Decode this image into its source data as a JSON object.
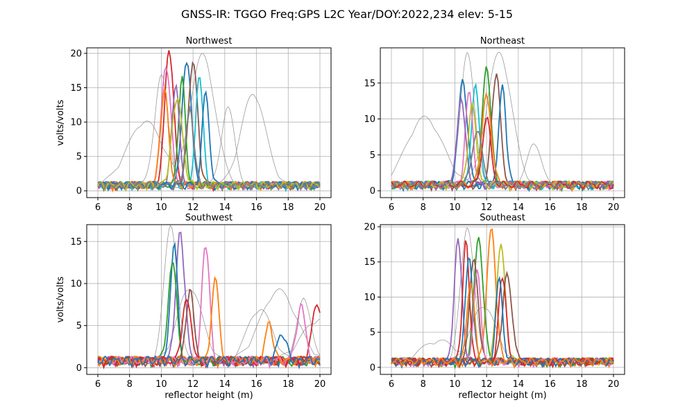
{
  "figure": {
    "suptitle": "GNSS-IR: TGGO Freq:GPS L2C Year/DOY:2022,234 elev: 5-15"
  },
  "chart_data": [
    {
      "type": "line",
      "title": "Northwest",
      "xlabel": "",
      "ylabel": "volts/volts",
      "xlim": [
        5.3,
        20.7
      ],
      "ylim": [
        -0.99,
        20.8
      ],
      "xticks": [
        6,
        8,
        10,
        12,
        14,
        16,
        18,
        20
      ],
      "yticks": [
        0,
        5,
        10,
        15,
        20
      ],
      "grid": true,
      "series": [
        {
          "color": "#d62728",
          "peak_x": 10.5,
          "peak_y": 19.8
        },
        {
          "color": "#1f77b4",
          "peak_x": 11.6,
          "peak_y": 18.5
        },
        {
          "color": "#8c564b",
          "peak_x": 12.0,
          "peak_y": 18.0
        },
        {
          "color": "#e377c2",
          "peak_x": 10.3,
          "peak_y": 17.5
        },
        {
          "color": "#17becf",
          "peak_x": 12.4,
          "peak_y": 16.2
        },
        {
          "color": "#2ca02c",
          "peak_x": 11.3,
          "peak_y": 15.6
        },
        {
          "color": "#9467bd",
          "peak_x": 10.9,
          "peak_y": 14.6
        },
        {
          "color": "#ff7f0e",
          "peak_x": 10.2,
          "peak_y": 13.8
        },
        {
          "color": "#1f77b4",
          "peak_x": 12.8,
          "peak_y": 13.6
        },
        {
          "color": "#bcbd22",
          "peak_x": 11.0,
          "peak_y": 12.8
        },
        {
          "color": "#7f7f7f",
          "peak_x": 11.8,
          "peak_y": 11.0
        }
      ],
      "gray_curves": [
        {
          "peak_x": 10.0,
          "peak_y": 16.0
        },
        {
          "peak_x": 12.6,
          "peak_y": 19.0
        },
        {
          "peak_x": 9.0,
          "peak_y": 9.3
        },
        {
          "peak_x": 14.2,
          "peak_y": 11.3
        },
        {
          "peak_x": 15.8,
          "peak_y": 13.3
        }
      ]
    },
    {
      "type": "line",
      "title": "Northeast",
      "xlabel": "",
      "ylabel": "",
      "xlim": [
        5.3,
        20.7
      ],
      "ylim": [
        -0.95,
        19.9
      ],
      "xticks": [
        6,
        8,
        10,
        12,
        14,
        16,
        18,
        20
      ],
      "yticks": [
        0,
        5,
        10,
        15
      ],
      "grid": true,
      "series": [
        {
          "color": "#2ca02c",
          "peak_x": 12.0,
          "peak_y": 16.5
        },
        {
          "color": "#8c564b",
          "peak_x": 12.6,
          "peak_y": 15.5
        },
        {
          "color": "#1f77b4",
          "peak_x": 10.5,
          "peak_y": 14.4
        },
        {
          "color": "#17becf",
          "peak_x": 11.3,
          "peak_y": 13.5
        },
        {
          "color": "#1f77b4",
          "peak_x": 13.0,
          "peak_y": 13.5
        },
        {
          "color": "#e377c2",
          "peak_x": 10.9,
          "peak_y": 12.9
        },
        {
          "color": "#ff7f0e",
          "peak_x": 12.0,
          "peak_y": 12.3
        },
        {
          "color": "#9467bd",
          "peak_x": 10.4,
          "peak_y": 11.5
        },
        {
          "color": "#bcbd22",
          "peak_x": 11.1,
          "peak_y": 11.0
        },
        {
          "color": "#d62728",
          "peak_x": 12.0,
          "peak_y": 9.3
        },
        {
          "color": "#7f7f7f",
          "peak_x": 11.4,
          "peak_y": 7.5
        }
      ],
      "gray_curves": [
        {
          "peak_x": 10.8,
          "peak_y": 18.7
        },
        {
          "peak_x": 12.8,
          "peak_y": 18.4
        },
        {
          "peak_x": 8.1,
          "peak_y": 9.4
        },
        {
          "peak_x": 15.0,
          "peak_y": 6.0
        }
      ]
    },
    {
      "type": "line",
      "title": "Southwest",
      "xlabel": "reflector height (m)",
      "ylabel": "volts/volts",
      "xlim": [
        5.3,
        20.7
      ],
      "ylim": [
        -0.8,
        17.0
      ],
      "xticks": [
        6,
        8,
        10,
        12,
        14,
        16,
        18,
        20
      ],
      "yticks": [
        0,
        5,
        10,
        15
      ],
      "grid": true,
      "series": [
        {
          "color": "#9467bd",
          "peak_x": 11.2,
          "peak_y": 15.1
        },
        {
          "color": "#e377c2",
          "peak_x": 12.8,
          "peak_y": 14.1
        },
        {
          "color": "#1f77b4",
          "peak_x": 10.8,
          "peak_y": 14.0
        },
        {
          "color": "#2ca02c",
          "peak_x": 10.7,
          "peak_y": 11.6
        },
        {
          "color": "#ff7f0e",
          "peak_x": 13.4,
          "peak_y": 10.3
        },
        {
          "color": "#8c564b",
          "peak_x": 11.8,
          "peak_y": 8.5
        },
        {
          "color": "#d62728",
          "peak_x": 11.6,
          "peak_y": 7.8
        },
        {
          "color": "#d62728",
          "peak_x": 19.8,
          "peak_y": 6.9
        },
        {
          "color": "#e377c2",
          "peak_x": 18.8,
          "peak_y": 6.5
        },
        {
          "color": "#ff7f0e",
          "peak_x": 16.8,
          "peak_y": 4.5
        },
        {
          "color": "#1f77b4",
          "peak_x": 17.6,
          "peak_y": 3.2
        }
      ],
      "gray_curves": [
        {
          "peak_x": 10.6,
          "peak_y": 16.1
        },
        {
          "peak_x": 11.8,
          "peak_y": 8.7
        },
        {
          "peak_x": 17.4,
          "peak_y": 8.4
        },
        {
          "peak_x": 19.0,
          "peak_y": 7.6
        },
        {
          "peak_x": 16.2,
          "peak_y": 6.2
        },
        {
          "peak_x": 20.0,
          "peak_y": 5.0
        }
      ]
    },
    {
      "type": "line",
      "title": "Southeast",
      "xlabel": "reflector height (m)",
      "ylabel": "",
      "xlim": [
        5.3,
        20.7
      ],
      "ylim": [
        -1.0,
        20.3
      ],
      "xticks": [
        6,
        8,
        10,
        12,
        14,
        16,
        18,
        20
      ],
      "yticks": [
        0,
        5,
        10,
        15,
        20
      ],
      "grid": true,
      "series": [
        {
          "color": "#ff7f0e",
          "peak_x": 12.3,
          "peak_y": 18.7
        },
        {
          "color": "#2ca02c",
          "peak_x": 11.5,
          "peak_y": 17.6
        },
        {
          "color": "#9467bd",
          "peak_x": 10.2,
          "peak_y": 17.1
        },
        {
          "color": "#d62728",
          "peak_x": 10.7,
          "peak_y": 16.9
        },
        {
          "color": "#bcbd22",
          "peak_x": 12.9,
          "peak_y": 16.8
        },
        {
          "color": "#8c564b",
          "peak_x": 11.2,
          "peak_y": 14.9
        },
        {
          "color": "#1f77b4",
          "peak_x": 10.9,
          "peak_y": 14.6
        },
        {
          "color": "#e377c2",
          "peak_x": 11.4,
          "peak_y": 13.2
        },
        {
          "color": "#8c564b",
          "peak_x": 13.3,
          "peak_y": 12.2
        },
        {
          "color": "#d62728",
          "peak_x": 13.0,
          "peak_y": 12.4
        },
        {
          "color": "#1f77b4",
          "peak_x": 12.8,
          "peak_y": 11.8
        },
        {
          "color": "#ff7f0e",
          "peak_x": 11.0,
          "peak_y": 11.5
        }
      ],
      "gray_curves": [
        {
          "peak_x": 10.8,
          "peak_y": 19.3
        },
        {
          "peak_x": 11.8,
          "peak_y": 8.0
        },
        {
          "peak_x": 9.0,
          "peak_y": 3.0
        }
      ]
    }
  ]
}
